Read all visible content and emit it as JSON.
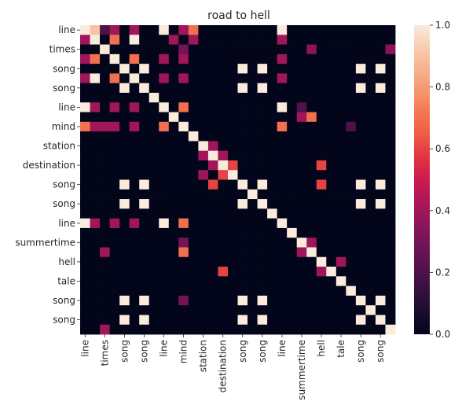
{
  "chart_data": {
    "type": "heatmap",
    "title": "road to hell",
    "xlabel": "",
    "ylabel": "",
    "tokens": [
      "line",
      "",
      "times",
      "",
      "song",
      "",
      "song",
      "",
      "line",
      "",
      "mind",
      "",
      "station",
      "",
      "destination",
      "",
      "song",
      "",
      "song",
      "",
      "line",
      "",
      "summertime",
      "",
      "hell",
      "",
      "tale",
      "",
      "song",
      "",
      "song",
      ""
    ],
    "x_tick_labels": [
      "line",
      "times",
      "song",
      "song",
      "line",
      "mind",
      "station",
      "destination",
      "song",
      "song",
      "line",
      "summertime",
      "hell",
      "tale",
      "song",
      "song"
    ],
    "y_tick_labels": [
      "line",
      "times",
      "song",
      "song",
      "line",
      "mind",
      "station",
      "destination",
      "song",
      "song",
      "line",
      "summertime",
      "hell",
      "tale",
      "song",
      "song"
    ],
    "colorbar": {
      "vmin": 0.0,
      "vmax": 1.0,
      "ticks": [
        "0.0",
        "0.2",
        "0.4",
        "0.6",
        "0.8",
        "1.0"
      ]
    },
    "colormap": [
      "#03051a",
      "#1b0c2e",
      "#36103f",
      "#53124c",
      "#701356",
      "#8d155c",
      "#ad1759",
      "#cb1b4f",
      "#e13342",
      "#ee5a43",
      "#f37652",
      "#f6966d",
      "#f7b18f",
      "#f8cdb1",
      "#faebdd"
    ],
    "matrix": [
      [
        1,
        0.9,
        0.2,
        0.4,
        0,
        0.4,
        0,
        0,
        1,
        0,
        0.4,
        0.7,
        0,
        0,
        0,
        0,
        0,
        0,
        0,
        0,
        1,
        0,
        0,
        0,
        0,
        0,
        0,
        0,
        0,
        0,
        0,
        0
      ],
      [
        0.4,
        1,
        0,
        0.7,
        0,
        1,
        0,
        0,
        0,
        0.4,
        0,
        0.4,
        0,
        0,
        0,
        0,
        0,
        0,
        0,
        0,
        0.4,
        0,
        0,
        0,
        0,
        0,
        0,
        0,
        0,
        0,
        0,
        0
      ],
      [
        0,
        0,
        1,
        0,
        0,
        0,
        0,
        0,
        0,
        0,
        0.3,
        0,
        0,
        0,
        0,
        0,
        0,
        0,
        0,
        0,
        0,
        0,
        0,
        0.35,
        0,
        0,
        0,
        0,
        0,
        0,
        0,
        0.35
      ],
      [
        0.4,
        0.7,
        0,
        1,
        0,
        0.7,
        0,
        0,
        0.4,
        0,
        0.4,
        0,
        0,
        0,
        0,
        0,
        0,
        0,
        0,
        0,
        0.4,
        0,
        0,
        0,
        0,
        0,
        0,
        0,
        0,
        0,
        0,
        0
      ],
      [
        0,
        0,
        0,
        0,
        1,
        0,
        1,
        0,
        0,
        0,
        0,
        0,
        0,
        0,
        0,
        0,
        1,
        0,
        1,
        0,
        0,
        0,
        0,
        0,
        0,
        0,
        0,
        0,
        1,
        0,
        1,
        0
      ],
      [
        0.4,
        1,
        0,
        0.7,
        0,
        1,
        0,
        0,
        0.4,
        0,
        0.4,
        0,
        0,
        0,
        0,
        0,
        0,
        0,
        0,
        0,
        0.4,
        0,
        0,
        0,
        0,
        0,
        0,
        0,
        0,
        0,
        0,
        0
      ],
      [
        0,
        0,
        0,
        0,
        1,
        0,
        1,
        0,
        0,
        0,
        0,
        0,
        0,
        0,
        0,
        0,
        1,
        0,
        1,
        0,
        0,
        0,
        0,
        0,
        0,
        0,
        0,
        0,
        1,
        0,
        1,
        0
      ],
      [
        0,
        0,
        0,
        0,
        0,
        0,
        0,
        1,
        0,
        0,
        0,
        0,
        0,
        0,
        0,
        0,
        0,
        0,
        0,
        0,
        0,
        0,
        0,
        0,
        0,
        0,
        0,
        0,
        0,
        0,
        0,
        0
      ],
      [
        1,
        0.4,
        0,
        0.4,
        0,
        0.4,
        0,
        0,
        1,
        0,
        0.7,
        0,
        0,
        0,
        0,
        0,
        0,
        0,
        0,
        0,
        1,
        0,
        0.2,
        0,
        0,
        0,
        0,
        0,
        0,
        0,
        0,
        0
      ],
      [
        0,
        0,
        0,
        0,
        0,
        0,
        0,
        0,
        0,
        1,
        0,
        0,
        0,
        0,
        0,
        0,
        0,
        0,
        0,
        0,
        0,
        0,
        0.4,
        0.7,
        0,
        0,
        0,
        0,
        0,
        0,
        0,
        0
      ],
      [
        0.7,
        0.4,
        0.4,
        0.4,
        0,
        0.4,
        0,
        0,
        0.7,
        0,
        1,
        0,
        0,
        0,
        0,
        0,
        0,
        0,
        0,
        0,
        0.7,
        0,
        0,
        0,
        0,
        0,
        0,
        0.2,
        0,
        0,
        0,
        0
      ],
      [
        0,
        0,
        0,
        0,
        0,
        0,
        0,
        0,
        0,
        0,
        0,
        1,
        0,
        0,
        0,
        0,
        0,
        0,
        0,
        0,
        0,
        0,
        0,
        0,
        0,
        0,
        0,
        0,
        0,
        0,
        0,
        0
      ],
      [
        0,
        0,
        0,
        0,
        0,
        0,
        0,
        0,
        0,
        0,
        0,
        0,
        1,
        0.4,
        0,
        0,
        0,
        0,
        0,
        0,
        0,
        0,
        0,
        0,
        0,
        0,
        0,
        0,
        0,
        0,
        0,
        0
      ],
      [
        0,
        0,
        0,
        0,
        0,
        0,
        0,
        0,
        0,
        0,
        0,
        0,
        0.4,
        1,
        0.4,
        0,
        0,
        0,
        0,
        0,
        0,
        0,
        0,
        0,
        0,
        0,
        0,
        0,
        0,
        0,
        0,
        0
      ],
      [
        0,
        0,
        0,
        0,
        0,
        0,
        0,
        0,
        0,
        0,
        0,
        0,
        0,
        0.4,
        1,
        0.6,
        0,
        0,
        0,
        0,
        0,
        0,
        0,
        0,
        0.6,
        0,
        0,
        0,
        0,
        0,
        0,
        0
      ],
      [
        0,
        0,
        0,
        0,
        0,
        0,
        0,
        0,
        0,
        0,
        0,
        0,
        0.4,
        0,
        0.6,
        1,
        0,
        0,
        0,
        0,
        0,
        0,
        0,
        0,
        0,
        0,
        0,
        0,
        0,
        0,
        0,
        0
      ],
      [
        0,
        0,
        0,
        0,
        1,
        0,
        1,
        0,
        0,
        0,
        0,
        0,
        0,
        0.6,
        0,
        0,
        1,
        0,
        1,
        0,
        0,
        0,
        0,
        0,
        0.6,
        0,
        0,
        0,
        1,
        0,
        1,
        0
      ],
      [
        0,
        0,
        0,
        0,
        0,
        0,
        0,
        0,
        0,
        0,
        0,
        0,
        0,
        0,
        0,
        0,
        0,
        1,
        0,
        0,
        0,
        0,
        0,
        0,
        0,
        0,
        0,
        0,
        0,
        0,
        0,
        0
      ],
      [
        0,
        0,
        0,
        0,
        1,
        0,
        1,
        0,
        0,
        0,
        0,
        0,
        0,
        0,
        0,
        0,
        1,
        0,
        1,
        0,
        0,
        0,
        0,
        0,
        0,
        0,
        0,
        0,
        1,
        0,
        1,
        0
      ],
      [
        0,
        0,
        0,
        0,
        0,
        0,
        0,
        0,
        0,
        0,
        0,
        0,
        0,
        0,
        0,
        0,
        0,
        0,
        0,
        1,
        0,
        0,
        0,
        0,
        0,
        0,
        0,
        0,
        0,
        0,
        0,
        0
      ],
      [
        1,
        0.4,
        0,
        0.4,
        0,
        0.4,
        0,
        0,
        1,
        0,
        0.7,
        0,
        0,
        0,
        0,
        0,
        0,
        0,
        0,
        0,
        1,
        0,
        0,
        0,
        0,
        0,
        0,
        0,
        0,
        0,
        0,
        0
      ],
      [
        0,
        0,
        0,
        0,
        0,
        0,
        0,
        0,
        0,
        0,
        0,
        0,
        0,
        0,
        0,
        0,
        0,
        0,
        0,
        0,
        0,
        1,
        0,
        0,
        0,
        0,
        0,
        0,
        0,
        0,
        0,
        0
      ],
      [
        0,
        0,
        0,
        0,
        0,
        0,
        0,
        0,
        0,
        0,
        0.3,
        0,
        0,
        0,
        0,
        0,
        0,
        0,
        0,
        0,
        0,
        0,
        1,
        0.4,
        0,
        0,
        0,
        0,
        0,
        0,
        0,
        0
      ],
      [
        0,
        0,
        0.4,
        0,
        0,
        0,
        0,
        0,
        0,
        0,
        0.7,
        0,
        0,
        0,
        0,
        0,
        0,
        0,
        0,
        0,
        0,
        0,
        0.4,
        1,
        0,
        0,
        0,
        0,
        0,
        0,
        0,
        0
      ],
      [
        0,
        0,
        0,
        0,
        0,
        0,
        0,
        0,
        0,
        0,
        0,
        0,
        0,
        0,
        0,
        0,
        0,
        0,
        0,
        0,
        0,
        0,
        0,
        0,
        1,
        0,
        0.4,
        0,
        0,
        0,
        0,
        0
      ],
      [
        0,
        0,
        0,
        0,
        0,
        0,
        0,
        0,
        0,
        0,
        0,
        0,
        0,
        0,
        0.6,
        0,
        0,
        0,
        0,
        0,
        0,
        0,
        0,
        0,
        0.4,
        1,
        0,
        0,
        0,
        0,
        0,
        0
      ],
      [
        0,
        0,
        0,
        0,
        0,
        0,
        0,
        0,
        0,
        0,
        0,
        0,
        0,
        0,
        0,
        0,
        0,
        0,
        0,
        0,
        0,
        0,
        0,
        0,
        0,
        0,
        1,
        0,
        0,
        0,
        0,
        0
      ],
      [
        0,
        0,
        0,
        0,
        0,
        0,
        0,
        0,
        0,
        0,
        0,
        0,
        0,
        0,
        0,
        0,
        0,
        0,
        0,
        0,
        0,
        0,
        0,
        0,
        0,
        0,
        0,
        1,
        0,
        0,
        0,
        0
      ],
      [
        0,
        0,
        0,
        0,
        1,
        0,
        1,
        0,
        0,
        0,
        0.3,
        0,
        0,
        0,
        0,
        0,
        1,
        0,
        1,
        0,
        0,
        0,
        0,
        0,
        0,
        0,
        0,
        0,
        1,
        0,
        1,
        0
      ],
      [
        0,
        0,
        0,
        0,
        0,
        0,
        0,
        0,
        0,
        0,
        0,
        0,
        0,
        0,
        0,
        0,
        0,
        0,
        0,
        0,
        0,
        0,
        0,
        0,
        0,
        0,
        0,
        0,
        0,
        1,
        0,
        0
      ],
      [
        0,
        0,
        0,
        0,
        1,
        0,
        1,
        0,
        0,
        0,
        0,
        0,
        0,
        0,
        0,
        0,
        1,
        0,
        1,
        0,
        0,
        0,
        0,
        0,
        0,
        0,
        0,
        0,
        1,
        0,
        1,
        0
      ],
      [
        0,
        0,
        0.4,
        0,
        0,
        0,
        0,
        0,
        0,
        0,
        0,
        0,
        0,
        0,
        0,
        0,
        0,
        0,
        0,
        0,
        0,
        0,
        0,
        0,
        0,
        0,
        0,
        0,
        0,
        0,
        0,
        1
      ]
    ]
  }
}
